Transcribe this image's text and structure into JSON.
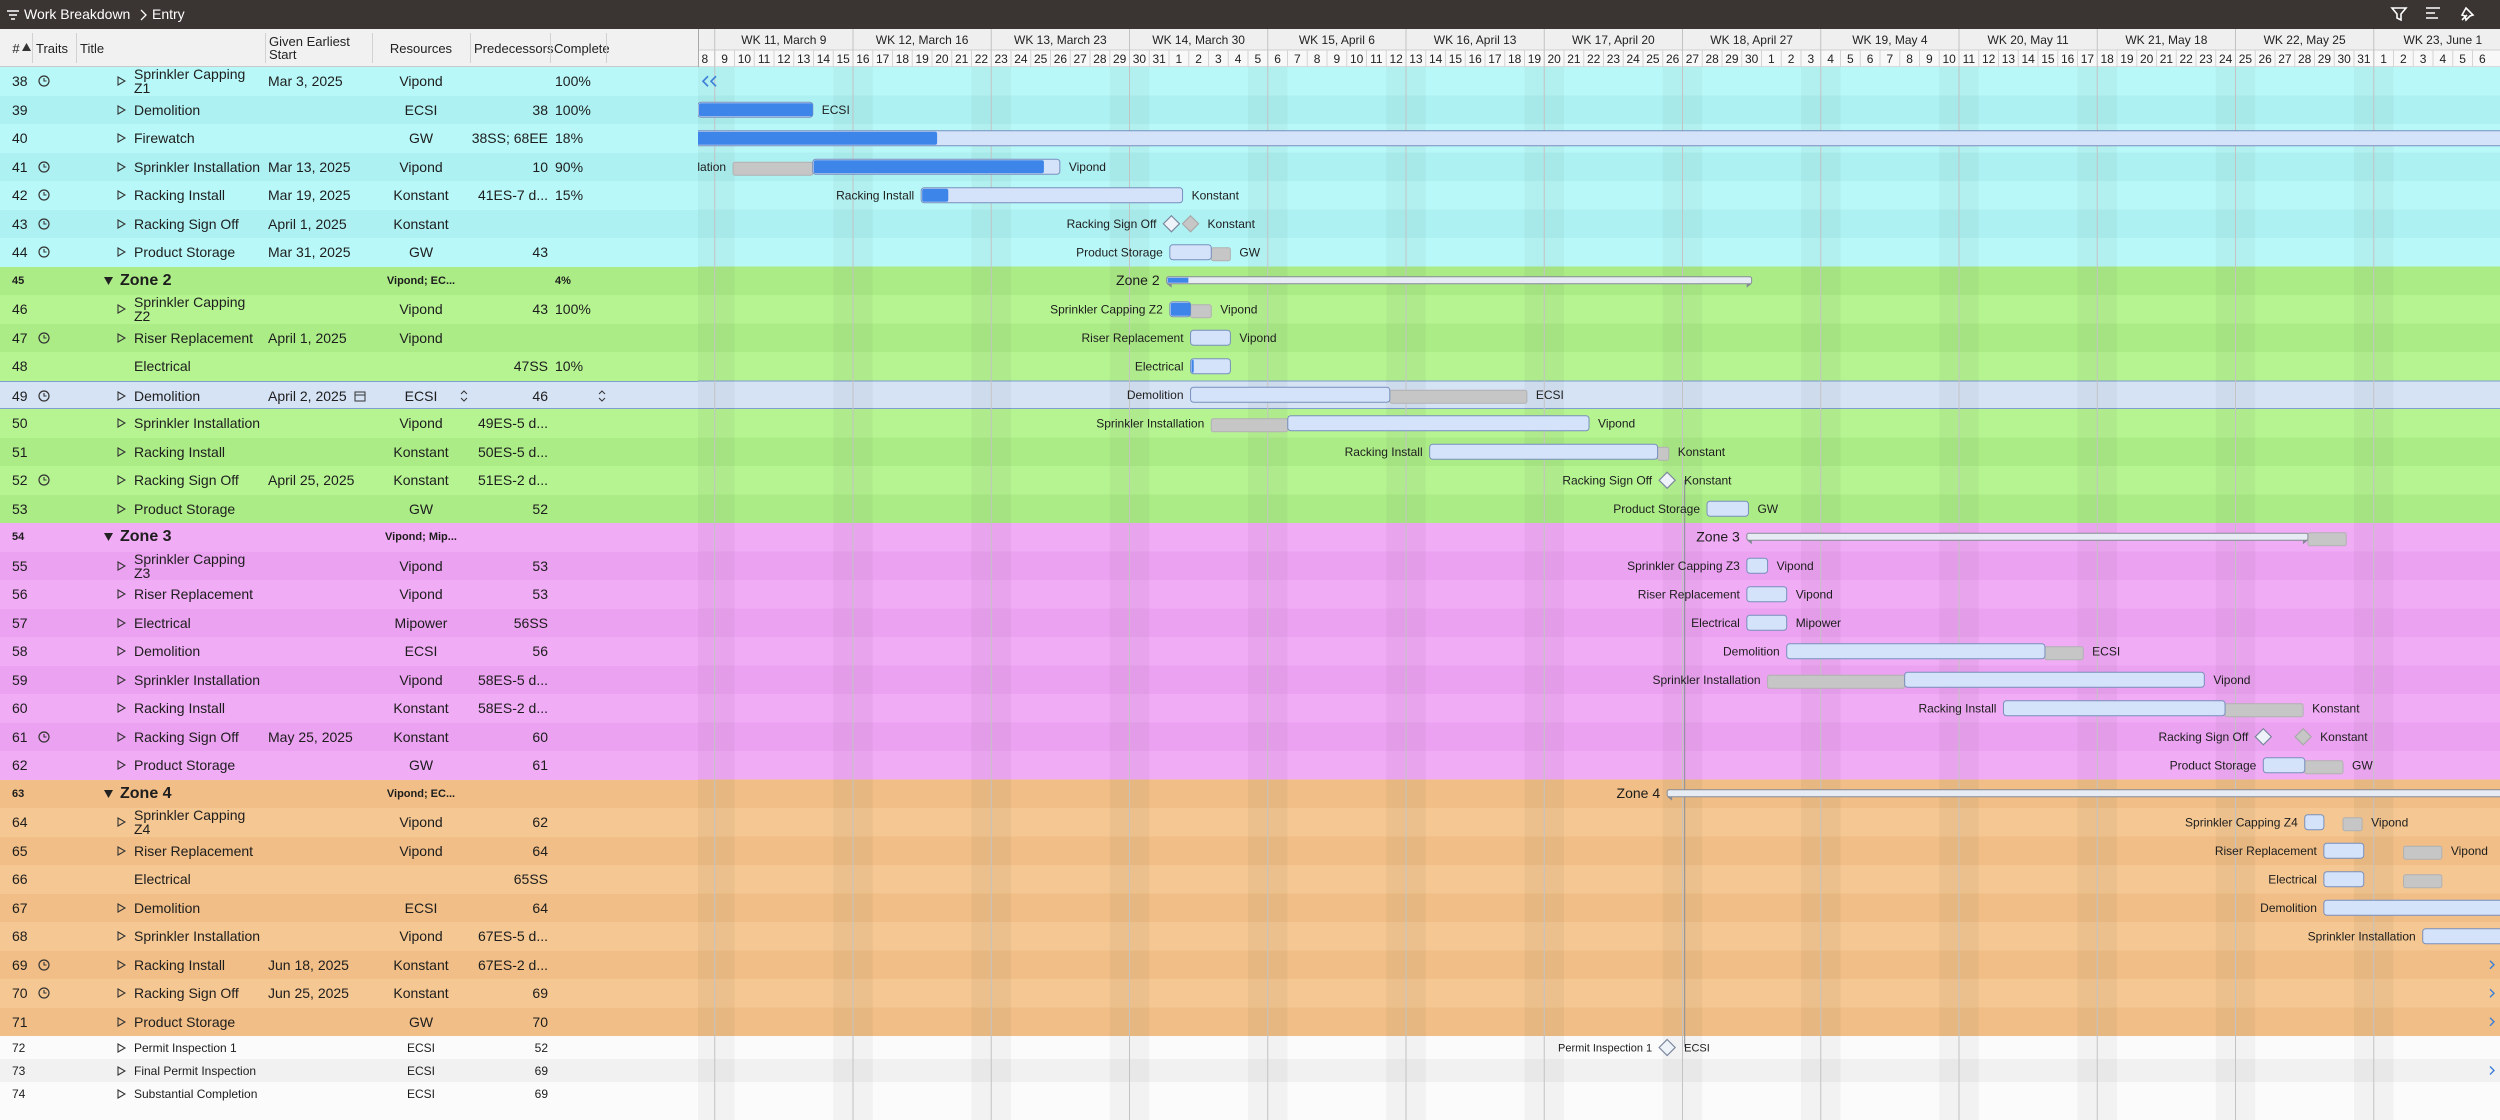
{
  "toolbar": {
    "breadcrumb": [
      "Work Breakdown",
      "Entry"
    ]
  },
  "columns": [
    "#",
    "Traits",
    "Title",
    "Given Earliest Start",
    "Resources",
    "Predecessors",
    "Complete"
  ],
  "timeline": {
    "weeks": [
      "WK 11, March 9",
      "WK 12, March 16",
      "WK 13, March 23",
      "WK 14, March 30",
      "WK 15, April 6",
      "WK 16, April 13",
      "WK 17, April 20",
      "WK 18, April 27",
      "WK 19, May 4",
      "WK 20, May 11",
      "WK 21, May 18",
      "WK 22, May 25",
      "WK 23, June 1"
    ],
    "days": [
      8,
      9,
      10,
      11,
      12,
      13,
      14,
      15,
      16,
      17,
      18,
      19,
      20,
      21,
      22,
      23,
      24,
      25,
      26,
      27,
      28,
      29,
      30,
      31,
      1,
      2,
      3,
      4,
      5,
      6,
      7,
      8,
      9,
      10,
      11,
      12,
      13,
      14,
      15,
      16,
      17,
      18,
      19,
      20,
      21,
      22,
      23,
      24,
      25,
      26,
      27,
      28,
      29,
      30,
      1,
      2,
      3,
      4,
      5,
      6,
      7,
      8,
      9,
      10,
      11,
      12,
      13,
      14,
      15,
      16,
      17,
      18,
      19,
      20,
      21,
      22,
      23,
      24,
      25,
      26,
      27,
      28,
      29,
      30,
      31,
      1,
      2,
      3,
      4,
      5,
      6
    ]
  },
  "rows": [
    {
      "id": 38,
      "title": "Sprinkler Capping Z1",
      "start": "Mar 3, 2025",
      "resources": "Vipond",
      "complete": "100%"
    },
    {
      "id": 39,
      "title": "Demolition",
      "resources": "ECSI",
      "predecessors": 38,
      "complete": "100%"
    },
    {
      "id": 40,
      "title": "Firewatch",
      "resources": "GW",
      "predecessors": "38SS; 68EE",
      "complete": "18%"
    },
    {
      "id": 41,
      "title": "Sprinkler Installation",
      "start": "Mar 13, 2025",
      "resources": "Vipond",
      "predecessors": 10,
      "complete": "90%"
    },
    {
      "id": 42,
      "title": "Racking Install",
      "start": "Mar 19, 2025",
      "resources": "Konstant",
      "predecessors": "41ES-7 d...",
      "complete": "15%"
    },
    {
      "id": 43,
      "title": "Racking Sign Off",
      "start": "April 1, 2025",
      "resources": "Konstant"
    },
    {
      "id": 44,
      "title": "Product Storage",
      "start": "Mar 31, 2025",
      "resources": "GW",
      "predecessors": 43
    },
    {
      "id": 45,
      "title": "Zone 2",
      "resources": "Vipond; EC...",
      "complete": "4%"
    },
    {
      "id": 46,
      "title": "Sprinkler Capping Z2",
      "resources": "Vipond",
      "predecessors": 43,
      "complete": "100%"
    },
    {
      "id": 47,
      "title": "Riser Replacement",
      "start": "April 1, 2025",
      "resources": "Vipond"
    },
    {
      "id": 48,
      "title": "Electrical",
      "predecessors": "47SS",
      "complete": "10%"
    },
    {
      "id": 49,
      "title": "Demolition",
      "start": "April 2, 2025",
      "resources": "ECSI",
      "predecessors": 46
    },
    {
      "id": 50,
      "title": "Sprinkler Installation",
      "resources": "Vipond",
      "predecessors": "49ES-5 d..."
    },
    {
      "id": 51,
      "title": "Racking Install",
      "resources": "Konstant",
      "predecessors": "50ES-5 d..."
    },
    {
      "id": 52,
      "title": "Racking Sign Off",
      "start": "April 25, 2025",
      "resources": "Konstant",
      "predecessors": "51ES-2 d..."
    },
    {
      "id": 53,
      "title": "Product Storage",
      "resources": "GW",
      "predecessors": 52
    },
    {
      "id": 54,
      "title": "Zone 3",
      "resources": "Vipond; Mip..."
    },
    {
      "id": 55,
      "title": "Sprinkler Capping Z3",
      "resources": "Vipond",
      "predecessors": 53
    },
    {
      "id": 56,
      "title": "Riser Replacement",
      "resources": "Vipond",
      "predecessors": 53
    },
    {
      "id": 57,
      "title": "Electrical",
      "resources": "Mipower",
      "predecessors": "56SS"
    },
    {
      "id": 58,
      "title": "Demolition",
      "resources": "ECSI",
      "predecessors": 56
    },
    {
      "id": 59,
      "title": "Sprinkler Installation",
      "resources": "Vipond",
      "predecessors": "58ES-5 d..."
    },
    {
      "id": 60,
      "title": "Racking Install",
      "resources": "Konstant",
      "predecessors": "58ES-2 d..."
    },
    {
      "id": 61,
      "title": "Racking Sign Off",
      "start": "May 25, 2025",
      "resources": "Konstant",
      "predecessors": 60
    },
    {
      "id": 62,
      "title": "Product Storage",
      "resources": "GW",
      "predecessors": 61
    },
    {
      "id": 63,
      "title": "Zone 4",
      "resources": "Vipond; EC..."
    },
    {
      "id": 64,
      "title": "Sprinkler Capping Z4",
      "resources": "Vipond",
      "predecessors": 62
    },
    {
      "id": 65,
      "title": "Riser Replacement",
      "resources": "Vipond",
      "predecessors": 64
    },
    {
      "id": 66,
      "title": "Electrical",
      "predecessors": "65SS"
    },
    {
      "id": 67,
      "title": "Demolition",
      "resources": "ECSI",
      "predecessors": 64
    },
    {
      "id": 68,
      "title": "Sprinkler Installation",
      "resources": "Vipond",
      "predecessors": "67ES-5 d..."
    },
    {
      "id": 69,
      "title": "Racking Install",
      "start": "Jun 18, 2025",
      "resources": "Konstant",
      "predecessors": "67ES-2 d..."
    },
    {
      "id": 70,
      "title": "Racking Sign Off",
      "start": "Jun 25, 2025",
      "resources": "Konstant",
      "predecessors": 69
    },
    {
      "id": 71,
      "title": "Product Storage",
      "resources": "GW",
      "predecessors": 70
    },
    {
      "id": 72,
      "title": "Permit Inspection 1",
      "resources": "ECSI",
      "predecessors": 52
    },
    {
      "id": 73,
      "title": "Final Permit Inspection",
      "resources": "ECSI",
      "predecessors": 69
    },
    {
      "id": 74,
      "title": "Substantial Completion",
      "resources": "ECSI",
      "predecessors": 69
    }
  ]
}
